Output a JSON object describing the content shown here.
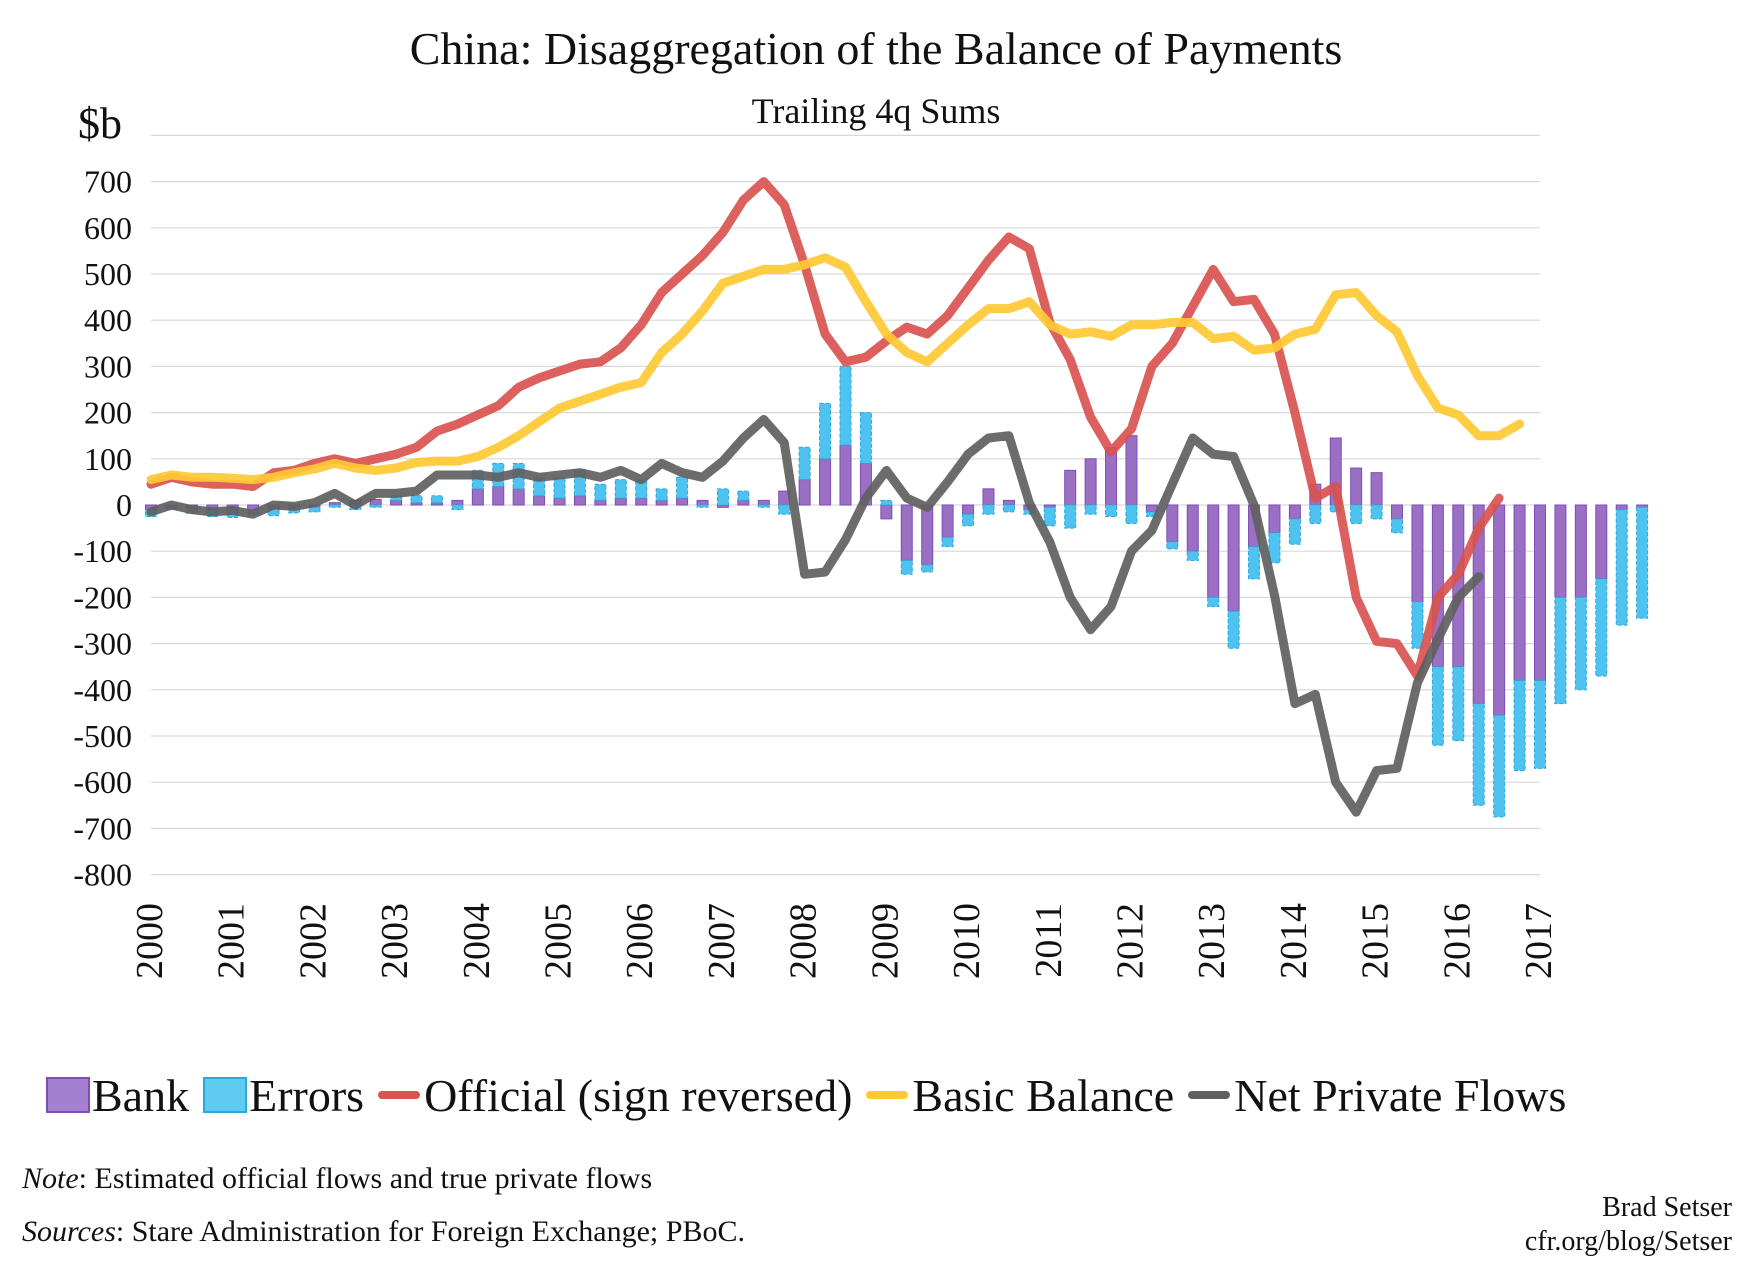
{
  "chart_data": {
    "type": "bar",
    "title": "China: Disaggregation of the Balance of Payments",
    "subtitle": "Trailing 4q Sums",
    "ylabel": "$b",
    "ylim": [
      -800,
      800
    ],
    "yticks": [
      700,
      600,
      500,
      400,
      300,
      200,
      100,
      0,
      -100,
      -200,
      -300,
      -400,
      -500,
      -600,
      -700,
      -800
    ],
    "xlim": [
      2000,
      2017
    ],
    "xticks": [
      "2000",
      "2001",
      "2002",
      "2003",
      "2004",
      "2005",
      "2006",
      "2007",
      "2008",
      "2009",
      "2010",
      "2011",
      "2012",
      "2013",
      "2014",
      "2015",
      "2016",
      "2017"
    ],
    "grid": true,
    "legend_position": "bottom",
    "x_start": 2000.0,
    "x_step": 0.25,
    "series": [
      {
        "name": "Bank",
        "kind": "bar",
        "color": "#9b6fc4",
        "values": [
          -10,
          -5,
          -8,
          -10,
          -12,
          -10,
          -8,
          -5,
          -5,
          5,
          10,
          12,
          10,
          5,
          5,
          10,
          35,
          40,
          35,
          20,
          15,
          20,
          10,
          15,
          15,
          10,
          15,
          10,
          -5,
          10,
          10,
          30,
          55,
          100,
          130,
          90,
          -30,
          -120,
          -130,
          -70,
          -20,
          35,
          10,
          -10,
          -5,
          75,
          100,
          125,
          150,
          -15,
          -80,
          -100,
          -200,
          -230,
          -90,
          -60,
          -30,
          45,
          145,
          80,
          70,
          -30,
          -210,
          -350,
          -350,
          -430,
          -455,
          -380,
          -380,
          -200,
          -200,
          -160,
          -10,
          -5
        ]
      },
      {
        "name": "Errors",
        "kind": "bar",
        "color": "#4fc3ef",
        "values": [
          -15,
          -5,
          -10,
          -15,
          -15,
          -10,
          -15,
          -12,
          -10,
          -5,
          -10,
          -5,
          10,
          15,
          15,
          -10,
          40,
          50,
          55,
          40,
          45,
          55,
          35,
          40,
          40,
          25,
          45,
          -5,
          35,
          20,
          -5,
          -20,
          70,
          120,
          170,
          110,
          10,
          -30,
          -15,
          -20,
          -25,
          -20,
          -15,
          -10,
          -40,
          -50,
          -20,
          -25,
          -40,
          -10,
          -15,
          -20,
          -20,
          -80,
          -70,
          -65,
          -55,
          -40,
          -15,
          -40,
          -30,
          -30,
          -100,
          -170,
          -160,
          -220,
          -220,
          -195,
          -190,
          -230,
          -200,
          -210,
          -250,
          -240
        ]
      },
      {
        "name": "Official (sign reversed)",
        "kind": "line",
        "color": "#d9534f",
        "values": [
          45,
          60,
          50,
          45,
          45,
          40,
          70,
          75,
          90,
          100,
          90,
          100,
          110,
          125,
          160,
          175,
          195,
          215,
          255,
          275,
          290,
          305,
          310,
          340,
          390,
          460,
          500,
          540,
          590,
          660,
          700,
          650,
          520,
          370,
          310,
          320,
          355,
          385,
          370,
          410,
          470,
          530,
          580,
          555,
          395,
          315,
          190,
          115,
          165,
          300,
          350,
          430,
          510,
          440,
          445,
          370,
          200,
          15,
          40,
          -200,
          -295,
          -300,
          -370,
          -200,
          -150,
          -50,
          15
        ]
      },
      {
        "name": "Basic Balance",
        "kind": "line",
        "color": "#ffc933",
        "values": [
          55,
          65,
          60,
          60,
          58,
          55,
          60,
          70,
          78,
          90,
          80,
          75,
          80,
          92,
          95,
          95,
          105,
          125,
          150,
          180,
          210,
          225,
          240,
          255,
          265,
          330,
          370,
          420,
          480,
          495,
          510,
          510,
          520,
          535,
          515,
          440,
          370,
          330,
          310,
          350,
          390,
          425,
          425,
          440,
          390,
          370,
          375,
          365,
          390,
          390,
          395,
          395,
          360,
          365,
          335,
          340,
          370,
          380,
          455,
          460,
          410,
          375,
          280,
          210,
          195,
          150,
          150,
          175
        ]
      },
      {
        "name": "Net Private Flows",
        "kind": "line",
        "color": "#606060",
        "values": [
          -15,
          0,
          -10,
          -15,
          -12,
          -20,
          0,
          -3,
          5,
          25,
          0,
          25,
          25,
          30,
          65,
          65,
          65,
          60,
          70,
          60,
          65,
          70,
          60,
          75,
          55,
          90,
          70,
          60,
          95,
          145,
          185,
          135,
          -150,
          -145,
          -75,
          15,
          75,
          15,
          -5,
          50,
          110,
          145,
          150,
          5,
          -80,
          -200,
          -270,
          -220,
          -100,
          -55,
          45,
          145,
          110,
          105,
          0,
          -195,
          -430,
          -410,
          -600,
          -665,
          -575,
          -570,
          -385,
          -290,
          -200,
          -155
        ]
      }
    ]
  },
  "text": {
    "title": "China: Disaggregation of the Balance of Payments",
    "subtitle": "Trailing 4q Sums",
    "unit": "$b",
    "legend": [
      "Bank",
      "Errors",
      "Official (sign reversed)",
      "Basic Balance",
      "Net Private Flows"
    ],
    "note_label": "Note",
    "note_text": ": Estimated official flows and true private flows",
    "source_label": "Sources",
    "source_text": ": Stare Administration for Foreign Exchange; PBoC.",
    "author": "Brad Setser",
    "url": "cfr.org/blog/Setser"
  }
}
